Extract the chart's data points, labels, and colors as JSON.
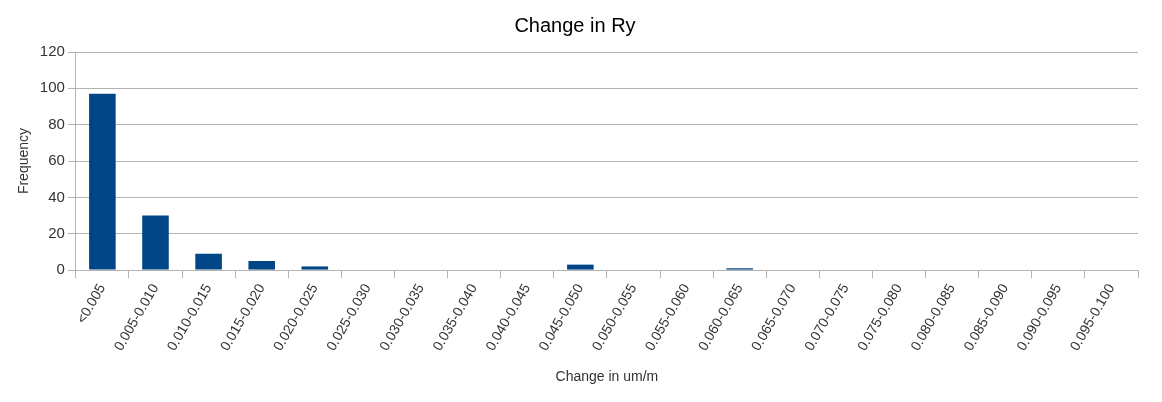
{
  "chart_data": {
    "type": "bar",
    "title": "Change in Ry",
    "xlabel": "Change in um/m",
    "ylabel": "Frequency",
    "categories": [
      "<0.005",
      "0.005-0.010",
      "0.010-0.015",
      "0.015-0.020",
      "0.020-0.025",
      "0.025-0.030",
      "0.030-0.035",
      "0.035-0.040",
      "0.040-0.045",
      "0.045-0.050",
      "0.050-0.055",
      "0.055-0.060",
      "0.060-0.065",
      "0.065-0.070",
      "0.070-0.075",
      "0.075-0.080",
      "0.080-0.085",
      "0.085-0.090",
      "0.090-0.095",
      "0.095-0.100"
    ],
    "values": [
      97,
      30,
      9,
      5,
      2,
      0,
      0,
      0,
      0,
      3,
      0,
      0,
      1,
      0,
      0,
      0,
      0,
      0,
      0,
      0
    ],
    "color": "#004586",
    "ylim": [
      0,
      120
    ],
    "yticks": [
      0,
      20,
      40,
      60,
      80,
      100,
      120
    ],
    "grid": "y",
    "legend": false
  }
}
